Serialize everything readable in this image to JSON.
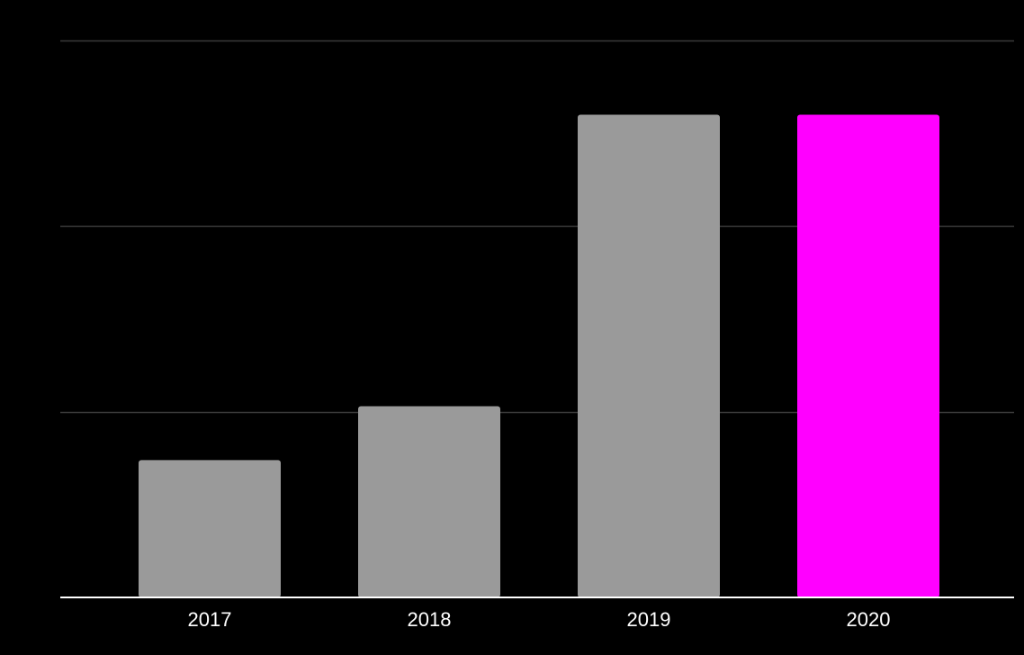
{
  "colors": {
    "background": "#000000",
    "bar_default": "#9a9a9a",
    "bar_highlight": "#ff00ff",
    "gridline": "#3a3a3a",
    "baseline": "#ffffff",
    "text": "#ffffff"
  },
  "chart_data": {
    "type": "bar",
    "title": "",
    "xlabel": "",
    "ylabel": "",
    "categories": [
      "2017",
      "2018",
      "2019",
      "2020"
    ],
    "values": [
      0.74,
      1.03,
      2.6,
      2.6
    ],
    "ylim": [
      0,
      3
    ],
    "yticks": [
      0,
      1,
      2,
      3
    ],
    "ytick_labels_shown": false,
    "grid": true,
    "legend": "none",
    "highlight_index": 3
  }
}
